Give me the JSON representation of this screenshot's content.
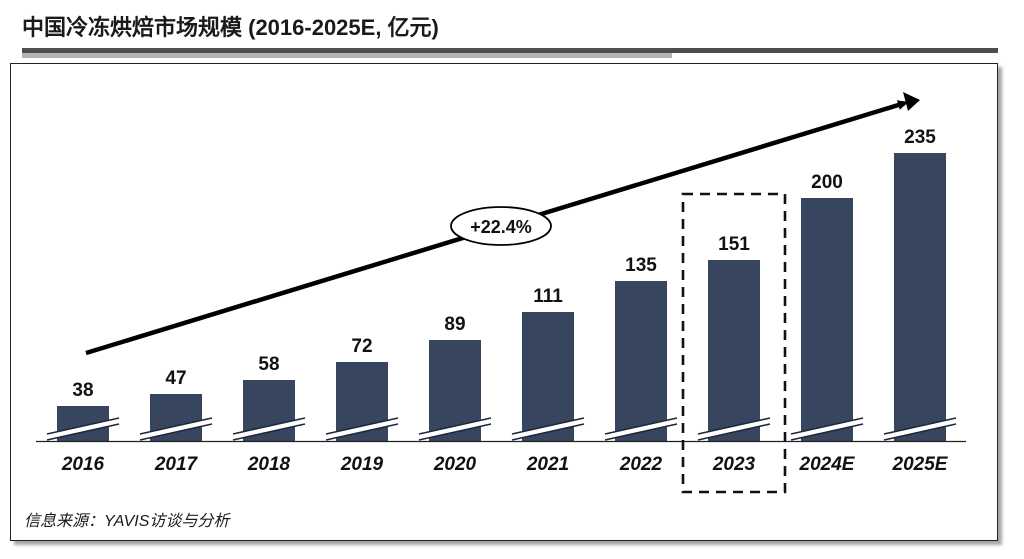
{
  "header": {
    "title": "中国冷冻烘焙市场规模 (2016-2025E, 亿元)"
  },
  "footer": {
    "source": "信息来源：YAVIS访谈与分析"
  },
  "chart_data": {
    "type": "bar",
    "title": "中国冷冻烘焙市场规模 (2016-2025E, 亿元)",
    "categories": [
      "2016",
      "2017",
      "2018",
      "2019",
      "2020",
      "2021",
      "2022",
      "2023",
      "2024E",
      "2025E"
    ],
    "values": [
      38,
      47,
      58,
      72,
      89,
      111,
      135,
      151,
      200,
      235
    ],
    "data_labels": [
      "38",
      "47",
      "58",
      "72",
      "89",
      "111",
      "135",
      "151",
      "200",
      "235"
    ],
    "highlighted_category": "2023",
    "axis_break": true,
    "trend_annotation": "+22.4%",
    "bar_color": "#38455e",
    "grid": false,
    "legend": "none"
  }
}
